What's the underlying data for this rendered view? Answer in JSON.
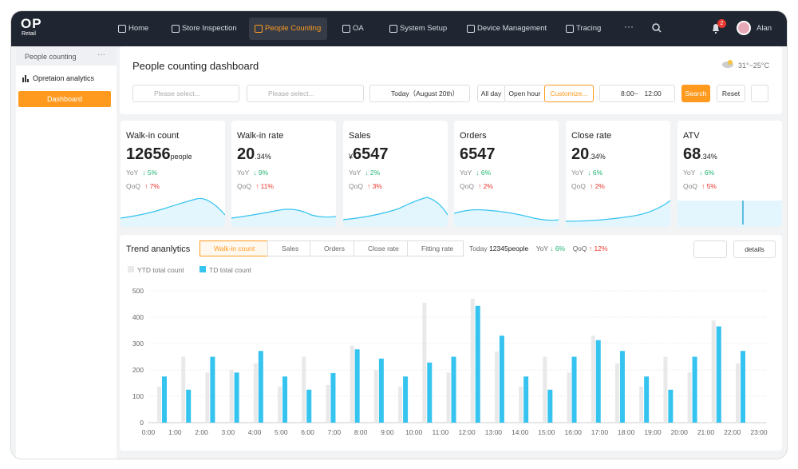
{
  "nav": {
    "logo": "OP",
    "logo_sub": "Retail",
    "items": [
      "Home",
      "Store Inspection",
      "People Counting",
      "OA",
      "System Setup",
      "Device Management",
      "Tracing"
    ],
    "more": "···",
    "badge": "2",
    "user": "Alan"
  },
  "sidebar": {
    "title": "People counting",
    "menu": "···",
    "group": "Opretaion analytics",
    "item": "Dashboard"
  },
  "header": {
    "title": "People counting dashboard",
    "weather": "31°~25°C"
  },
  "filters": {
    "store": "Please select...",
    "device": "Please select...",
    "date": "Today（August 20th）",
    "ranges": [
      "All day",
      "Open hour",
      "Customize..."
    ],
    "time_start": "8:00",
    "time_sep": "~",
    "time_end": "12:00",
    "search": "Search",
    "reset": "Reset"
  },
  "cards": [
    {
      "title": "Walk-in count",
      "value": "12656",
      "unit": "people",
      "yoy_label": "YoY",
      "yoy": "↓ 5%",
      "qoq_label": "QoQ",
      "qoq": "↑ 7%"
    },
    {
      "title": "Walk-in rate",
      "value": "20",
      "unit": ".34%",
      "yoy_label": "YoY",
      "yoy": "↓ 9%",
      "qoq_label": "QoQ",
      "qoq": "↑ 11%"
    },
    {
      "title": "Sales",
      "prefix": "¥",
      "value": "6547",
      "yoy_label": "YoY",
      "yoy": "↓ 2%",
      "qoq_label": "QoQ",
      "qoq": "↑ 3%"
    },
    {
      "title": "Orders",
      "value": "6547",
      "yoy_label": "YoY",
      "yoy": "↓ 6%",
      "qoq_label": "QoQ",
      "qoq": "↑ 2%"
    },
    {
      "title": "Close rate",
      "value": "20",
      "unit": ".34%",
      "yoy_label": "YoY",
      "yoy": "↓ 6%",
      "qoq_label": "QoQ",
      "qoq": "↑ 2%"
    },
    {
      "title": "ATV",
      "value": "68",
      "unit": ".34%",
      "yoy_label": "YoY",
      "yoy": "↓ 6%",
      "qoq_label": "QoQ",
      "qoq": "↑ 5%"
    }
  ],
  "trend": {
    "title": "Trend ananlytics",
    "tabs": [
      "Walk-in count",
      "Sales",
      "Orders",
      "Close rate",
      "Fitting rate"
    ],
    "today_label": "Today",
    "today_value": "12345people",
    "yoy_label": "YoY",
    "yoy": "↓ 6%",
    "qoq_label": "QoQ",
    "qoq": "↑ 12%",
    "details": "details"
  },
  "chart_data": {
    "type": "bar",
    "categories": [
      "0:00",
      "1:00",
      "2:00",
      "3:00",
      "4:00",
      "5:00",
      "6:00",
      "7:00",
      "8:00",
      "9:00",
      "10:00",
      "11:00",
      "12:00",
      "13:00",
      "14:00",
      "15:00",
      "16:00",
      "17:00",
      "18:00",
      "19:00",
      "20:00",
      "21:00",
      "22:00",
      "23:00",
      null
    ],
    "series": [
      {
        "name": "YTD total count",
        "color": "#e9e9e9",
        "values": [
          137,
          250,
          190,
          200,
          225,
          137,
          250,
          143,
          292,
          200,
          137,
          455,
          190,
          470,
          270,
          137,
          250,
          190,
          330,
          225,
          137,
          250,
          190,
          387,
          225
        ]
      },
      {
        "name": "TD total count",
        "color": "#35c3ef",
        "values": [
          175,
          125,
          250,
          190,
          272,
          175,
          125,
          188,
          278,
          243,
          175,
          228,
          250,
          443,
          330,
          175,
          125,
          250,
          313,
          272,
          175,
          125,
          250,
          365,
          272
        ]
      }
    ],
    "ylim": [
      0,
      500
    ],
    "yticks": [
      0,
      100,
      200,
      300,
      400,
      500
    ],
    "grid": true
  }
}
